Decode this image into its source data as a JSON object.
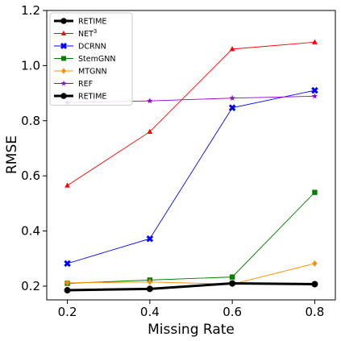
{
  "chart_data": {
    "type": "line",
    "xlabel": "Missing Rate",
    "ylabel": "RMSE",
    "xlim": [
      0.15,
      0.85
    ],
    "ylim": [
      0.15,
      1.2
    ],
    "x": [
      0.2,
      0.4,
      0.6,
      0.8
    ],
    "x_ticks": [
      "0.2",
      "0.4",
      "0.6",
      "0.8"
    ],
    "y_ticks": [
      "0.2",
      "0.4",
      "0.6",
      "0.8",
      "1.0",
      "1.2"
    ],
    "legend_position": "top-left",
    "grid": false,
    "series": [
      {
        "name": "RETIME",
        "color": "#000000",
        "marker": "circle",
        "values": [
          0.185,
          0.19,
          0.21,
          0.207
        ],
        "legend_only": true
      },
      {
        "name": "NET",
        "name_sup": "3",
        "color": "#ff0000",
        "marker": "triangle",
        "values": [
          0.565,
          0.76,
          1.06,
          1.085
        ]
      },
      {
        "name": "DCRNN",
        "color": "#0000ff",
        "marker": "x-filled",
        "values": [
          0.282,
          0.372,
          0.847,
          0.91
        ]
      },
      {
        "name": "StemGNN",
        "color": "#008000",
        "marker": "square",
        "values": [
          0.21,
          0.222,
          0.233,
          0.54
        ]
      },
      {
        "name": "MTGNN",
        "color": "#ff8c00",
        "marker": "diamond",
        "values": [
          0.212,
          0.215,
          0.207,
          0.282
        ]
      },
      {
        "name": "REF",
        "color": "#9400d3",
        "marker": "star",
        "values": [
          0.866,
          0.872,
          0.882,
          0.889
        ]
      },
      {
        "name": "RETIME",
        "color": "#000000",
        "marker": "circle",
        "values": [
          0.185,
          0.19,
          0.21,
          0.207
        ],
        "bold": true
      }
    ]
  }
}
